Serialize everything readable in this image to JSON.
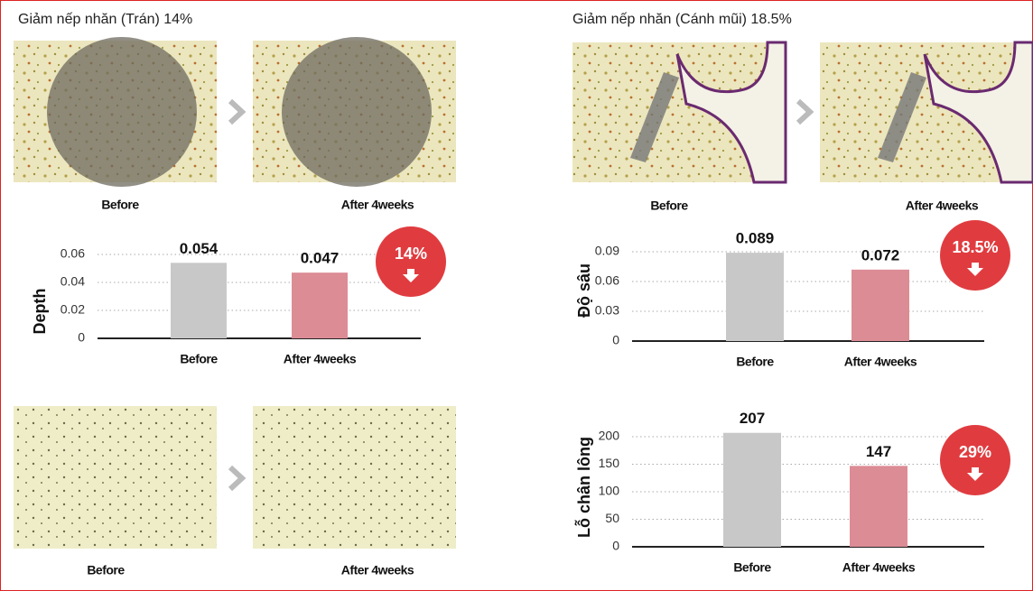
{
  "sections": [
    {
      "title": "Giảm nếp nhăn (Trán) 14%",
      "captions": [
        "Before",
        "After 4weeks"
      ],
      "captions_lower": [
        "Before",
        "After 4weeks"
      ]
    },
    {
      "title": "Giảm nếp nhăn (Cánh mũi) 18.5%",
      "captions": [
        "Before",
        "After 4weeks"
      ]
    }
  ],
  "chart_data": [
    {
      "type": "bar",
      "y_label": "Depth",
      "categories": [
        "Before",
        "After 4weeks"
      ],
      "series": [
        {
          "name": "Depth",
          "colors": [
            "#c8c8c8",
            "#dc8c95"
          ],
          "values": [
            0.054,
            0.047
          ]
        }
      ],
      "ylim": [
        0,
        0.07
      ],
      "yticks": [
        0,
        0.02,
        0.04,
        0.06
      ],
      "grid": true,
      "annotation": "14%"
    },
    {
      "type": "bar",
      "y_label": "Độ sâu",
      "categories": [
        "Before",
        "After 4weeks"
      ],
      "series": [
        {
          "name": "Độ sâu",
          "colors": [
            "#c8c8c8",
            "#dc8c95"
          ],
          "values": [
            0.089,
            0.072
          ]
        }
      ],
      "ylim": [
        0,
        0.1
      ],
      "yticks": [
        0,
        0.03,
        0.06,
        0.09
      ],
      "grid": true,
      "annotation": "18.5%"
    },
    {
      "type": "bar",
      "y_label": "Lỗ chân lông",
      "categories": [
        "Before",
        "After 4weeks"
      ],
      "series": [
        {
          "name": "Lỗ chân lông",
          "colors": [
            "#c8c8c8",
            "#dc8c95"
          ],
          "values": [
            207,
            147
          ]
        }
      ],
      "ylim": [
        0,
        230
      ],
      "yticks": [
        0,
        50,
        100,
        150,
        200
      ],
      "grid": true,
      "annotation": "29%"
    }
  ]
}
